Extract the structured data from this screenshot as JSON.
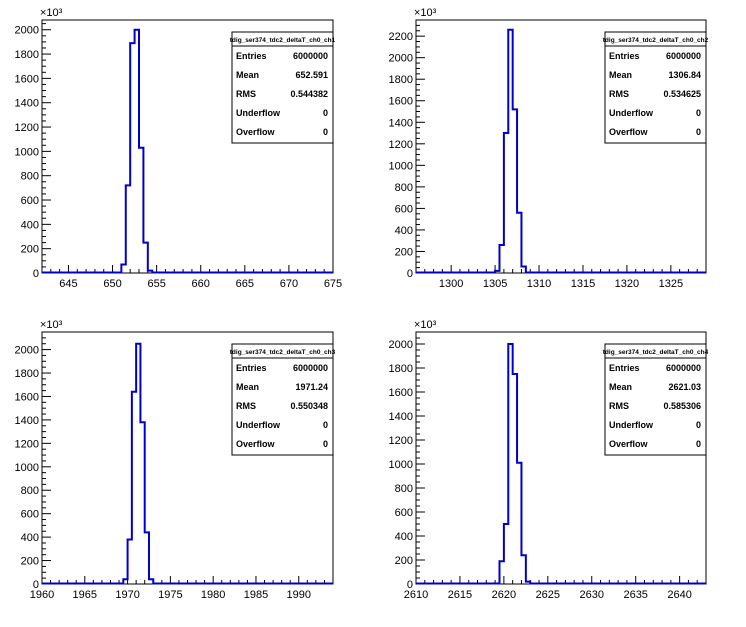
{
  "chart_data": [
    {
      "type": "histogram",
      "stats": {
        "title": "tdig_ser374_tdc2_deltaT_ch0_ch1",
        "rows": [
          [
            "Entries",
            "6000000"
          ],
          [
            "Mean",
            "652.591"
          ],
          [
            "RMS",
            "0.544382"
          ],
          [
            "Underflow",
            "0"
          ],
          [
            "Overflow",
            "0"
          ]
        ]
      },
      "exponent_label": "×10³",
      "xlim": [
        642,
        675
      ],
      "ylim": [
        0,
        2080
      ],
      "xticks": [
        645,
        650,
        655,
        660,
        665,
        670,
        675
      ],
      "yticks": [
        0,
        200,
        400,
        600,
        800,
        1000,
        1200,
        1400,
        1600,
        1800,
        2000
      ],
      "bin_width": 0.5,
      "bins": [
        [
          651.0,
          70
        ],
        [
          651.5,
          720
        ],
        [
          652.0,
          1890
        ],
        [
          652.5,
          2000
        ],
        [
          653.0,
          1030
        ],
        [
          653.5,
          250
        ],
        [
          654.0,
          20
        ]
      ]
    },
    {
      "type": "histogram",
      "stats": {
        "title": "tdig_ser374_tdc2_deltaT_ch0_ch2",
        "rows": [
          [
            "Entries",
            "6000000"
          ],
          [
            "Mean",
            "1306.84"
          ],
          [
            "RMS",
            "0.534625"
          ],
          [
            "Underflow",
            "0"
          ],
          [
            "Overflow",
            "0"
          ]
        ]
      },
      "exponent_label": "×10³",
      "xlim": [
        1296,
        1329
      ],
      "ylim": [
        0,
        2350
      ],
      "xticks": [
        1300,
        1305,
        1310,
        1315,
        1320,
        1325
      ],
      "yticks": [
        0,
        200,
        400,
        600,
        800,
        1000,
        1200,
        1400,
        1600,
        1800,
        2000,
        2200
      ],
      "bin_width": 0.5,
      "bins": [
        [
          1305.0,
          20
        ],
        [
          1305.5,
          260
        ],
        [
          1306.0,
          1300
        ],
        [
          1306.5,
          2260
        ],
        [
          1307.0,
          1520
        ],
        [
          1307.5,
          560
        ],
        [
          1308.0,
          60
        ]
      ]
    },
    {
      "type": "histogram",
      "stats": {
        "title": "tdig_ser374_tdc2_deltaT_ch0_ch3",
        "rows": [
          [
            "Entries",
            "6000000"
          ],
          [
            "Mean",
            "1971.24"
          ],
          [
            "RMS",
            "0.550348"
          ],
          [
            "Underflow",
            "0"
          ],
          [
            "Overflow",
            "0"
          ]
        ]
      },
      "exponent_label": "×10³",
      "xlim": [
        1960,
        1994
      ],
      "ylim": [
        0,
        2150
      ],
      "xticks": [
        1960,
        1965,
        1970,
        1975,
        1980,
        1985,
        1990
      ],
      "yticks": [
        0,
        200,
        400,
        600,
        800,
        1000,
        1200,
        1400,
        1600,
        1800,
        2000
      ],
      "bin_width": 0.5,
      "bins": [
        [
          1969.5,
          40
        ],
        [
          1970.0,
          380
        ],
        [
          1970.5,
          1640
        ],
        [
          1971.0,
          2050
        ],
        [
          1971.5,
          1380
        ],
        [
          1972.0,
          440
        ],
        [
          1972.5,
          40
        ]
      ]
    },
    {
      "type": "histogram",
      "stats": {
        "title": "tdig_ser374_tdc2_deltaT_ch0_ch4",
        "rows": [
          [
            "Entries",
            "6000000"
          ],
          [
            "Mean",
            "2621.03"
          ],
          [
            "RMS",
            "0.585306"
          ],
          [
            "Underflow",
            "0"
          ],
          [
            "Overflow",
            "0"
          ]
        ]
      },
      "exponent_label": "×10³",
      "xlim": [
        2610,
        2643
      ],
      "ylim": [
        0,
        2100
      ],
      "xticks": [
        2610,
        2615,
        2620,
        2625,
        2630,
        2635,
        2640
      ],
      "yticks": [
        0,
        200,
        400,
        600,
        800,
        1000,
        1200,
        1400,
        1600,
        1800,
        2000
      ],
      "bin_width": 0.5,
      "bins": [
        [
          2619.5,
          190
        ],
        [
          2620.0,
          500
        ],
        [
          2620.5,
          2000
        ],
        [
          2621.0,
          1750
        ],
        [
          2621.5,
          1010
        ],
        [
          2622.0,
          240
        ],
        [
          2622.5,
          20
        ]
      ]
    }
  ]
}
